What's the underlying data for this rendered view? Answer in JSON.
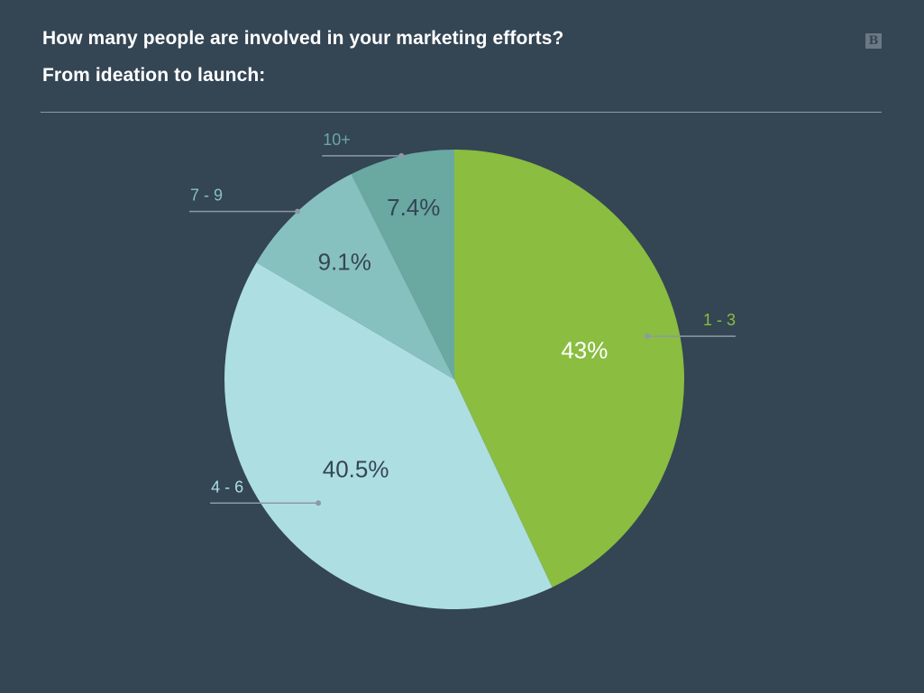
{
  "header": {
    "title_line1": "How many people are involved in your marketing efforts?",
    "title_line2": "From ideation to launch:",
    "logo_text": "B"
  },
  "colors": {
    "background": "#344554",
    "leader_line": "#8d9aa6",
    "divider": "#8d9aa6"
  },
  "chart_data": {
    "type": "pie",
    "slices": [
      {
        "label": "1 - 3",
        "value": 43.0,
        "value_label": "43%",
        "color": "#8abd40",
        "label_color": "#8abd40",
        "value_text_color": "#ffffff"
      },
      {
        "label": "4 - 6",
        "value": 40.5,
        "value_label": "40.5%",
        "color": "#addee2",
        "label_color": "#addee2",
        "value_text_color": "#344554"
      },
      {
        "label": "7 - 9",
        "value": 9.1,
        "value_label": "9.1%",
        "color": "#87c1bf",
        "label_color": "#87c1bf",
        "value_text_color": "#344554"
      },
      {
        "label": "10+",
        "value": 7.4,
        "value_label": "7.4%",
        "color": "#6aa8a2",
        "label_color": "#6aa8a2",
        "value_text_color": "#344554"
      }
    ],
    "start_angle_deg": 0,
    "direction": "clockwise",
    "legend": "leader-line labels"
  }
}
